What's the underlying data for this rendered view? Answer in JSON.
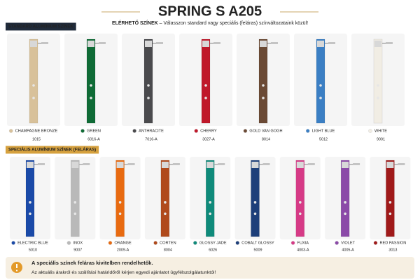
{
  "header": {
    "title": "SPRING S A205",
    "subtitle_strong": "ELÉRHETŐ SZÍNEK",
    "subtitle": "– Válasszon standard vagy speciális (feláras) színváltozataink közül!"
  },
  "sections": [
    {
      "label": "STANDARD ALUMÍNIUM SZÍNEK",
      "items": [
        {
          "name": "CHAMPAGNE BRONZE",
          "code": "1015",
          "color": "#d8c19a"
        },
        {
          "name": "GREEN",
          "code": "6016-A",
          "color": "#0f6b36"
        },
        {
          "name": "ANTHRACITE",
          "code": "7016-A",
          "color": "#4a4a4d"
        },
        {
          "name": "CHERRY",
          "code": "3027-A",
          "color": "#c0182a"
        },
        {
          "name": "GOLD VAN GOGH",
          "code": "8014",
          "color": "#6b4a35"
        },
        {
          "name": "LIGHT BLUE",
          "code": "5012",
          "color": "#3b7fc4"
        },
        {
          "name": "WHITE",
          "code": "9001",
          "color": "#f1ede4"
        }
      ]
    },
    {
      "label": "SPECIÁLIS ALUMÍNIUM SZÍNEK (FELÁRAS)",
      "items": [
        {
          "name": "ELECTRIC BLUE",
          "code": "5010",
          "color": "#1a4aa8"
        },
        {
          "name": "INOX",
          "code": "9007",
          "color": "#b9b9b9"
        },
        {
          "name": "ORANGE",
          "code": "2009-A",
          "color": "#e86a10"
        },
        {
          "name": "CORTEN",
          "code": "8004",
          "color": "#b04a1c"
        },
        {
          "name": "GLOSSY JADE",
          "code": "6026",
          "color": "#0f8a7a"
        },
        {
          "name": "COBALT GLOSSY",
          "code": "5009",
          "color": "#1d3f7a"
        },
        {
          "name": "FUXIA",
          "code": "4003-A",
          "color": "#d63a86"
        },
        {
          "name": "VIOLET",
          "code": "4005-A",
          "color": "#8b4aa8"
        },
        {
          "name": "RED PASSION",
          "code": "3013",
          "color": "#a01a1a"
        }
      ]
    }
  ],
  "notice": {
    "title": "A speciális színek feláras kivitelben rendelhetők.",
    "text": "Az aktuális árakról és szállítási határidőről kérjen egyedi ajánlatot ügyfélszolgálatunktól!"
  }
}
